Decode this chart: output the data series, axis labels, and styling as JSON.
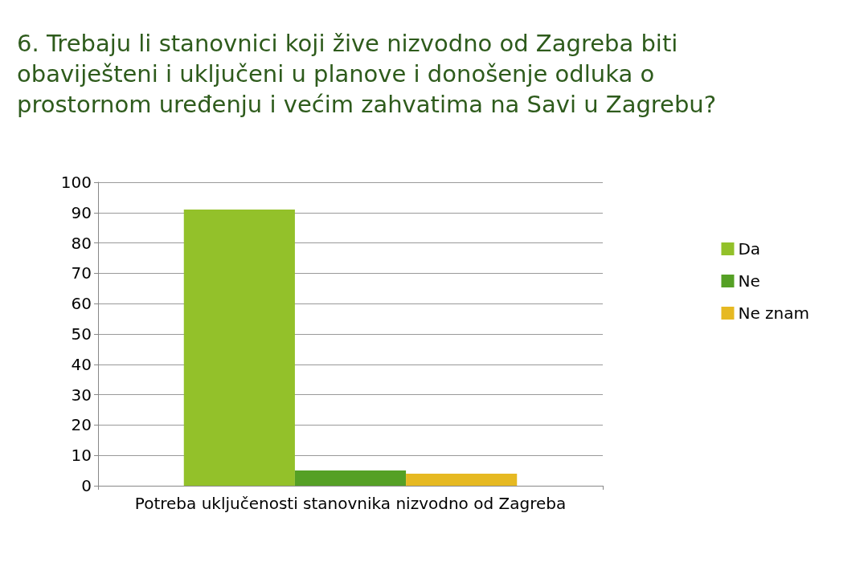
{
  "chart_data": {
    "type": "bar",
    "title": "6. Trebaju li stanovnici koji žive nizvodno od Zagreba biti\nobaviješteni i uključeni u planove i donošenje odluka o\nprostornom uređenju i većim zahvatima na Savi u Zagrebu?",
    "categories": [
      "Potreba uključenosti stanovnika nizvodno od Zagreba"
    ],
    "series": [
      {
        "name": "Da",
        "color": "#93c12a",
        "values": [
          91
        ]
      },
      {
        "name": "Ne",
        "color": "#55a025",
        "values": [
          5
        ]
      },
      {
        "name": "Ne znam",
        "color": "#e6b922",
        "values": [
          4
        ]
      }
    ],
    "ylim": [
      0,
      100
    ],
    "yticks": [
      0,
      10,
      20,
      30,
      40,
      50,
      60,
      70,
      80,
      90,
      100
    ],
    "grid": "y",
    "legend": "right"
  }
}
